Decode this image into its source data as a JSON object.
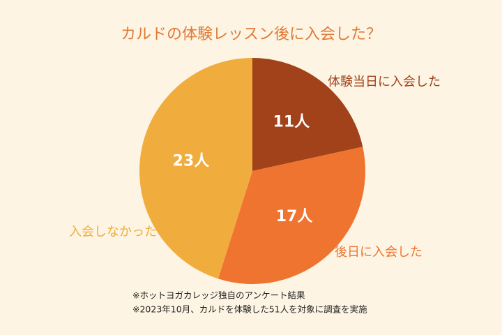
{
  "chart_data": {
    "type": "pie",
    "title": "カルドの体験レッスン後に入会した？",
    "categories": [
      "体験当日に入会した",
      "後日に入会した",
      "入会しなかった"
    ],
    "values": [
      11,
      17,
      23
    ],
    "value_labels": [
      "11人",
      "17人",
      "23人"
    ],
    "colors": [
      "#a1421a",
      "#ee7430",
      "#f0ac3c"
    ],
    "notes": [
      "※ホットヨガカレッジ独自のアンケート結果",
      "※2023年10月、カルドを体験した51人を対象に調査を実施"
    ]
  }
}
